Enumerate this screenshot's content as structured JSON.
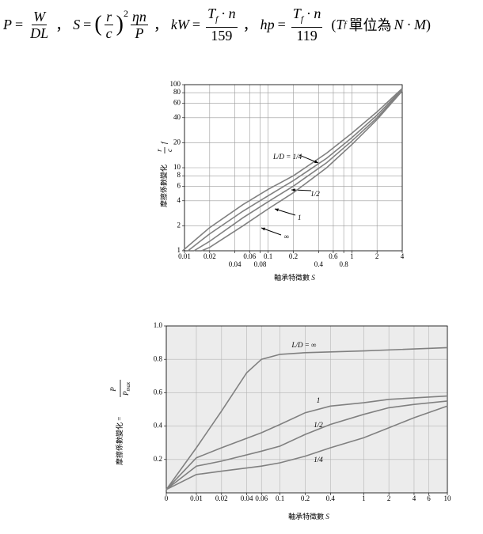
{
  "formula": {
    "equals": "=",
    "separator": "，",
    "p": {
      "lhs": "P",
      "num": "W",
      "den": "DL"
    },
    "s": {
      "lhs": "S",
      "open": "(",
      "num_r": "r",
      "den_c": "c",
      "close": ")",
      "exp": "2",
      "num": "ηn",
      "den": "P"
    },
    "kw": {
      "lhs": "kW",
      "num_t": "T",
      "num_sub": "f",
      "num_rest": "· n",
      "den": "159"
    },
    "hp": {
      "lhs": "hp",
      "num_t": "T",
      "num_sub": "f",
      "num_rest": "· n",
      "den": "119"
    },
    "note": {
      "open": "(",
      "t": "T",
      "sub": "f",
      "text": "單位為",
      "unit": "N · M",
      "close": ")"
    }
  },
  "chart_data": [
    {
      "type": "line",
      "xscale": "log",
      "yscale": "log",
      "grid": true,
      "ylabel": {
        "text": "摩擦係數變化",
        "num": "r",
        "den": "c",
        "var": "f"
      },
      "xlabel": {
        "text": "軸承特徵數",
        "var": "S"
      },
      "xlim": [
        0.01,
        4
      ],
      "ylim": [
        1,
        100
      ],
      "xticks": [
        0.01,
        0.02,
        0.04,
        0.06,
        0.08,
        0.1,
        0.2,
        0.4,
        0.6,
        0.8,
        1,
        2,
        4
      ],
      "yticks": [
        1,
        2,
        4,
        6,
        8,
        10,
        20,
        40,
        60,
        80,
        100
      ],
      "series": [
        {
          "name": "L/D = 1/4",
          "color": "#808080",
          "x": [
            0.0095,
            0.02,
            0.05,
            0.1,
            0.2,
            0.5,
            1,
            2,
            4
          ],
          "values": [
            1,
            1.9,
            3.6,
            5.5,
            8,
            15,
            26,
            47,
            90
          ]
        },
        {
          "name": "1/2",
          "color": "#808080",
          "x": [
            0.011,
            0.02,
            0.05,
            0.1,
            0.2,
            0.5,
            1,
            2,
            4
          ],
          "values": [
            1,
            1.6,
            3,
            4.6,
            7,
            13,
            23,
            43,
            88
          ]
        },
        {
          "name": "1",
          "color": "#808080",
          "x": [
            0.013,
            0.02,
            0.05,
            0.1,
            0.2,
            0.5,
            1,
            2,
            4
          ],
          "values": [
            1,
            1.3,
            2.5,
            3.9,
            6,
            11.5,
            21,
            40,
            86
          ]
        },
        {
          "name": "∞",
          "color": "#808080",
          "x": [
            0.016,
            0.02,
            0.05,
            0.1,
            0.2,
            0.5,
            1,
            2,
            4
          ],
          "values": [
            1,
            1.1,
            2,
            3.2,
            5,
            10,
            19,
            38,
            84
          ]
        }
      ]
    },
    {
      "type": "line",
      "xscale": "log",
      "yscale": "linear",
      "grid": true,
      "ylabel": {
        "text": "摩擦係數變化 =",
        "num": "P",
        "den": "P",
        "den_sub": "max"
      },
      "xlabel": {
        "text": "軸承特徵數",
        "var": "S"
      },
      "xlim": [
        0,
        10
      ],
      "ylim": [
        0,
        1
      ],
      "xticks": [
        0,
        0.01,
        0.02,
        0.04,
        0.06,
        0.1,
        0.2,
        0.4,
        1,
        2,
        4,
        6,
        10
      ],
      "yticks": [
        0.2,
        0.4,
        0.6,
        0.8,
        {
          "value": 1,
          "label": "1.0"
        }
      ],
      "series": [
        {
          "name": "L/D = ∞",
          "color": "#808080",
          "x": [
            0,
            0.01,
            0.02,
            0.04,
            0.06,
            0.1,
            0.2,
            1,
            10
          ],
          "values": [
            0.02,
            0.27,
            0.49,
            0.72,
            0.8,
            0.83,
            0.84,
            0.85,
            0.87
          ]
        },
        {
          "name": "1",
          "color": "#808080",
          "x": [
            0,
            0.01,
            0.02,
            0.06,
            0.1,
            0.2,
            0.4,
            1,
            2,
            10
          ],
          "values": [
            0.02,
            0.21,
            0.27,
            0.36,
            0.41,
            0.48,
            0.52,
            0.54,
            0.56,
            0.58
          ]
        },
        {
          "name": "1/2",
          "color": "#808080",
          "x": [
            0,
            0.01,
            0.02,
            0.06,
            0.1,
            0.2,
            0.4,
            1,
            2,
            4,
            10
          ],
          "values": [
            0.02,
            0.16,
            0.19,
            0.25,
            0.28,
            0.35,
            0.41,
            0.47,
            0.51,
            0.53,
            0.55
          ]
        },
        {
          "name": "1/4",
          "color": "#808080",
          "x": [
            0,
            0.01,
            0.02,
            0.06,
            0.1,
            0.2,
            0.4,
            1,
            2,
            4,
            10
          ],
          "values": [
            0.02,
            0.11,
            0.13,
            0.16,
            0.18,
            0.22,
            0.27,
            0.33,
            0.39,
            0.45,
            0.52
          ]
        }
      ]
    }
  ]
}
